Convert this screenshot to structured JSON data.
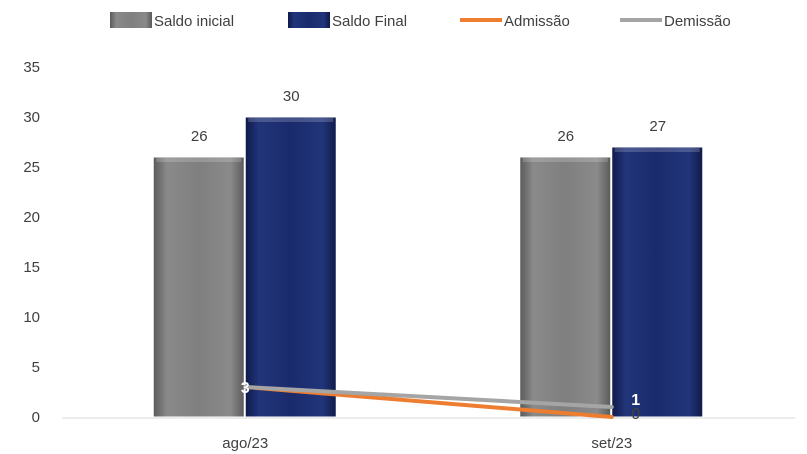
{
  "chart_data": {
    "type": "bar",
    "categories": [
      "ago/23",
      "set/23"
    ],
    "ylim": [
      0,
      35
    ],
    "yticks": [
      0,
      5,
      10,
      15,
      20,
      25,
      30,
      35
    ],
    "grid": false,
    "legend": "top",
    "bar_series": [
      {
        "name": "Saldo inicial",
        "values": [
          26,
          26
        ],
        "color": "#7f7f7f"
      },
      {
        "name": "Saldo Final",
        "values": [
          30,
          27
        ],
        "color": "#1a2a6c"
      }
    ],
    "line_series": [
      {
        "name": "Admissão",
        "values": [
          3,
          0
        ],
        "color": "#ed7d31"
      },
      {
        "name": "Demissão",
        "values": [
          3,
          1
        ],
        "color": "#a5a5a5"
      }
    ],
    "line_labels": [
      {
        "series": "Demissão",
        "category": "ago/23",
        "text": "3"
      },
      {
        "series": "Demissão",
        "category": "set/23",
        "text": "1"
      },
      {
        "series": "Admissão",
        "category": "set/23",
        "text": "0"
      }
    ]
  }
}
